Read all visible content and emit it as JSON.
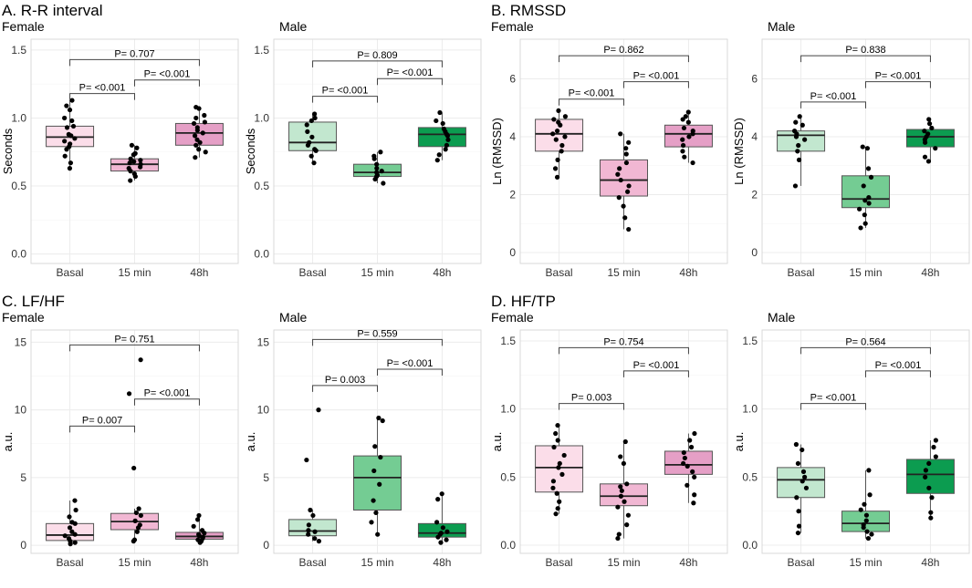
{
  "chart_data": [
    {
      "type": "box",
      "title": "A. R-R interval",
      "subtitle": "Female",
      "ylabel": "Seconds",
      "ylim": [
        -0.07,
        1.58
      ],
      "yticks": [
        "0.0",
        "0.5",
        "1.0",
        "1.5"
      ],
      "yvals": [
        0,
        0.5,
        1,
        1.5
      ],
      "colors": [
        "#fbdde9",
        "#f1b7d3",
        "#e59fc6"
      ],
      "groups": [
        {
          "label": "Basal",
          "q1": 0.79,
          "median": 0.86,
          "q3": 0.94,
          "whisker_low": 0.63,
          "whisker_high": 1.13,
          "points": [
            0.63,
            0.67,
            0.72,
            0.77,
            0.79,
            0.81,
            0.83,
            0.85,
            0.87,
            0.88,
            0.93,
            0.94,
            0.98,
            1.0,
            1.06,
            1.09,
            1.13
          ]
        },
        {
          "label": "15 min",
          "q1": 0.61,
          "median": 0.66,
          "q3": 0.7,
          "whisker_low": 0.54,
          "whisker_high": 0.8,
          "points": [
            0.54,
            0.57,
            0.59,
            0.61,
            0.63,
            0.64,
            0.66,
            0.67,
            0.68,
            0.69,
            0.7,
            0.73,
            0.74,
            0.78,
            0.8
          ]
        },
        {
          "label": "48h",
          "q1": 0.8,
          "median": 0.89,
          "q3": 0.96,
          "whisker_low": 0.71,
          "whisker_high": 1.08,
          "points": [
            0.71,
            0.75,
            0.77,
            0.8,
            0.82,
            0.84,
            0.87,
            0.89,
            0.91,
            0.93,
            0.96,
            0.97,
            1.0,
            1.02,
            1.07,
            1.08
          ]
        }
      ],
      "comparisons": [
        {
          "from": 0,
          "to": 2,
          "y": 1.43,
          "label": "P= 0.707"
        },
        {
          "from": 1,
          "to": 2,
          "y": 1.28,
          "label": "P= <0.001"
        },
        {
          "from": 0,
          "to": 1,
          "y": 1.18,
          "label": "P= <0.001"
        }
      ]
    },
    {
      "type": "box",
      "title": "",
      "subtitle": "Male",
      "ylabel": "Seconds",
      "ylim": [
        -0.07,
        1.58
      ],
      "yticks": [
        "0.0",
        "0.5",
        "1.0",
        "1.5"
      ],
      "yvals": [
        0,
        0.5,
        1,
        1.5
      ],
      "colors": [
        "#c2e7cf",
        "#74cc93",
        "#0c9c50"
      ],
      "groups": [
        {
          "label": "Basal",
          "q1": 0.76,
          "median": 0.82,
          "q3": 0.97,
          "whisker_low": 0.67,
          "whisker_high": 1.03,
          "points": [
            0.67,
            0.72,
            0.76,
            0.77,
            0.8,
            0.82,
            0.86,
            0.9,
            0.95,
            0.98,
            1.0,
            1.03
          ]
        },
        {
          "label": "15 min",
          "q1": 0.57,
          "median": 0.6,
          "q3": 0.66,
          "whisker_low": 0.52,
          "whisker_high": 0.75,
          "points": [
            0.52,
            0.55,
            0.57,
            0.58,
            0.6,
            0.61,
            0.63,
            0.66,
            0.7,
            0.72,
            0.75
          ]
        },
        {
          "label": "48h",
          "q1": 0.79,
          "median": 0.88,
          "q3": 0.93,
          "whisker_low": 0.69,
          "whisker_high": 1.04,
          "points": [
            0.69,
            0.73,
            0.77,
            0.8,
            0.84,
            0.87,
            0.88,
            0.9,
            0.92,
            0.96,
            0.98,
            1.04
          ]
        }
      ],
      "comparisons": [
        {
          "from": 0,
          "to": 2,
          "y": 1.42,
          "label": "P= 0.809"
        },
        {
          "from": 1,
          "to": 2,
          "y": 1.29,
          "label": "P= <0.001"
        },
        {
          "from": 0,
          "to": 1,
          "y": 1.16,
          "label": "P= <0.001"
        }
      ]
    },
    {
      "type": "box",
      "title": "B. RMSSD",
      "subtitle": "Female",
      "ylabel": "Ln (RMSSD)",
      "ylim": [
        -0.38,
        7.37
      ],
      "yticks": [
        "0",
        "2",
        "4",
        "6"
      ],
      "yvals": [
        0,
        2,
        4,
        6
      ],
      "colors": [
        "#fbdde9",
        "#f1b7d3",
        "#e59fc6"
      ],
      "groups": [
        {
          "label": "Basal",
          "q1": 3.5,
          "median": 4.1,
          "q3": 4.6,
          "whisker_low": 2.6,
          "whisker_high": 4.9,
          "points": [
            2.6,
            2.9,
            3.2,
            3.5,
            3.7,
            3.9,
            4.0,
            4.1,
            4.2,
            4.4,
            4.5,
            4.6,
            4.7,
            4.9
          ]
        },
        {
          "label": "15 min",
          "q1": 1.95,
          "median": 2.5,
          "q3": 3.2,
          "whisker_low": 0.8,
          "whisker_high": 4.1,
          "points": [
            0.8,
            1.2,
            1.6,
            1.9,
            2.1,
            2.3,
            2.5,
            2.7,
            2.9,
            3.1,
            3.4,
            3.6,
            3.8,
            4.1
          ]
        },
        {
          "label": "48h",
          "q1": 3.65,
          "median": 4.1,
          "q3": 4.4,
          "whisker_low": 3.1,
          "whisker_high": 4.85,
          "points": [
            3.1,
            3.3,
            3.5,
            3.7,
            3.9,
            4.0,
            4.1,
            4.2,
            4.3,
            4.5,
            4.6,
            4.7,
            4.85
          ]
        }
      ],
      "comparisons": [
        {
          "from": 0,
          "to": 2,
          "y": 6.8,
          "label": "P= 0.862"
        },
        {
          "from": 1,
          "to": 2,
          "y": 5.9,
          "label": "P= <0.001"
        },
        {
          "from": 0,
          "to": 1,
          "y": 5.3,
          "label": "P= <0.001"
        }
      ]
    },
    {
      "type": "box",
      "title": "",
      "subtitle": "Male",
      "ylabel": "Ln (RMSSD)",
      "ylim": [
        -0.38,
        7.37
      ],
      "yticks": [
        "0",
        "2",
        "4",
        "6"
      ],
      "yvals": [
        0,
        2,
        4,
        6
      ],
      "colors": [
        "#c2e7cf",
        "#74cc93",
        "#0c9c50"
      ],
      "groups": [
        {
          "label": "Basal",
          "q1": 3.5,
          "median": 4.05,
          "q3": 4.2,
          "whisker_low": 2.3,
          "whisker_high": 4.7,
          "points": [
            2.3,
            3.2,
            3.5,
            3.7,
            3.9,
            4.0,
            4.1,
            4.2,
            4.4,
            4.5,
            4.7
          ]
        },
        {
          "label": "15 min",
          "q1": 1.55,
          "median": 1.85,
          "q3": 2.65,
          "whisker_low": 0.85,
          "whisker_high": 3.65,
          "points": [
            0.85,
            1.0,
            1.3,
            1.5,
            1.7,
            1.8,
            1.9,
            2.3,
            2.6,
            2.9,
            3.6,
            3.65
          ]
        },
        {
          "label": "48h",
          "q1": 3.65,
          "median": 4.0,
          "q3": 4.25,
          "whisker_low": 3.15,
          "whisker_high": 4.6,
          "points": [
            3.15,
            3.3,
            3.6,
            3.8,
            3.9,
            4.0,
            4.1,
            4.2,
            4.3,
            4.45,
            4.6
          ]
        }
      ],
      "comparisons": [
        {
          "from": 0,
          "to": 2,
          "y": 6.8,
          "label": "P= 0.838"
        },
        {
          "from": 1,
          "to": 2,
          "y": 5.9,
          "label": "P= <0.001"
        },
        {
          "from": 0,
          "to": 1,
          "y": 5.2,
          "label": "P= <0.001"
        }
      ]
    },
    {
      "type": "box",
      "title": "C. LF/HF",
      "subtitle": "Female",
      "ylabel": "a.u.",
      "ylim": [
        -0.6,
        15.9
      ],
      "yticks": [
        "0",
        "5",
        "10",
        "15"
      ],
      "yvals": [
        0,
        5,
        10,
        15
      ],
      "colors": [
        "#fbdde9",
        "#f1b7d3",
        "#e59fc6"
      ],
      "groups": [
        {
          "label": "Basal",
          "q1": 0.35,
          "median": 0.75,
          "q3": 1.6,
          "whisker_low": 0.1,
          "whisker_high": 3.3,
          "points": [
            0.1,
            0.2,
            0.3,
            0.5,
            0.7,
            0.8,
            1.0,
            1.3,
            1.6,
            1.7,
            2.1,
            2.6,
            3.3
          ]
        },
        {
          "label": "15 min",
          "q1": 1.15,
          "median": 1.75,
          "q3": 2.35,
          "whisker_low": 0.3,
          "whisker_high": 2.7,
          "points": [
            0.3,
            0.4,
            1.0,
            1.3,
            1.5,
            1.8,
            2.2,
            2.4,
            2.7,
            5.7,
            11.2,
            13.7
          ]
        },
        {
          "label": "48h",
          "q1": 0.45,
          "median": 0.65,
          "q3": 0.95,
          "whisker_low": 0.2,
          "whisker_high": 2.2,
          "points": [
            0.2,
            0.3,
            0.4,
            0.5,
            0.6,
            0.7,
            0.8,
            0.9,
            1.1,
            1.4,
            1.9,
            2.2
          ]
        }
      ],
      "comparisons": [
        {
          "from": 0,
          "to": 2,
          "y": 14.8,
          "label": "P= 0.751"
        },
        {
          "from": 1,
          "to": 2,
          "y": 10.8,
          "label": "P= <0.001"
        },
        {
          "from": 0,
          "to": 1,
          "y": 8.8,
          "label": "P= 0.007"
        }
      ]
    },
    {
      "type": "box",
      "title": "",
      "subtitle": "Male",
      "ylabel": "a.u.",
      "ylim": [
        -0.6,
        15.9
      ],
      "yticks": [
        "0",
        "5",
        "10",
        "15"
      ],
      "yvals": [
        0,
        5,
        10,
        15
      ],
      "colors": [
        "#c2e7cf",
        "#74cc93",
        "#0c9c50"
      ],
      "groups": [
        {
          "label": "Basal",
          "q1": 0.7,
          "median": 1.05,
          "q3": 1.9,
          "whisker_low": 0.3,
          "whisker_high": 2.6,
          "points": [
            0.3,
            0.5,
            0.8,
            1.0,
            1.1,
            1.5,
            2.2,
            2.6,
            6.3,
            10.0
          ]
        },
        {
          "label": "15 min",
          "q1": 2.6,
          "median": 5.0,
          "q3": 6.6,
          "whisker_low": 0.8,
          "whisker_high": 9.4,
          "points": [
            0.8,
            1.7,
            2.4,
            3.3,
            4.5,
            5.5,
            6.5,
            7.3,
            9.2,
            9.4
          ]
        },
        {
          "label": "48h",
          "q1": 0.6,
          "median": 0.9,
          "q3": 1.6,
          "whisker_low": 0.2,
          "whisker_high": 3.8,
          "points": [
            0.2,
            0.4,
            0.6,
            0.8,
            0.9,
            1.0,
            1.3,
            1.7,
            3.4,
            3.8
          ]
        }
      ],
      "comparisons": [
        {
          "from": 0,
          "to": 2,
          "y": 15.2,
          "label": "P= 0.559"
        },
        {
          "from": 1,
          "to": 2,
          "y": 13.0,
          "label": "P= <0.001"
        },
        {
          "from": 0,
          "to": 1,
          "y": 11.8,
          "label": "P= 0.003"
        }
      ]
    },
    {
      "type": "box",
      "title": "D. HF/TP",
      "subtitle": "Female",
      "ylabel": "a.u.",
      "ylim": [
        -0.06,
        1.58
      ],
      "yticks": [
        "0.0",
        "0.5",
        "1.0",
        "1.5"
      ],
      "yvals": [
        0,
        0.5,
        1,
        1.5
      ],
      "colors": [
        "#fbdde9",
        "#f1b7d3",
        "#e59fc6"
      ],
      "groups": [
        {
          "label": "Basal",
          "q1": 0.39,
          "median": 0.57,
          "q3": 0.73,
          "whisker_low": 0.23,
          "whisker_high": 0.88,
          "points": [
            0.23,
            0.27,
            0.32,
            0.38,
            0.42,
            0.47,
            0.52,
            0.57,
            0.6,
            0.66,
            0.72,
            0.77,
            0.82,
            0.88
          ]
        },
        {
          "label": "15 min",
          "q1": 0.29,
          "median": 0.36,
          "q3": 0.45,
          "whisker_low": 0.05,
          "whisker_high": 0.76,
          "points": [
            0.05,
            0.08,
            0.15,
            0.22,
            0.28,
            0.32,
            0.36,
            0.4,
            0.43,
            0.45,
            0.6,
            0.65,
            0.76
          ]
        },
        {
          "label": "48h",
          "q1": 0.52,
          "median": 0.59,
          "q3": 0.69,
          "whisker_low": 0.31,
          "whisker_high": 0.82,
          "points": [
            0.31,
            0.37,
            0.44,
            0.5,
            0.54,
            0.58,
            0.6,
            0.64,
            0.68,
            0.72,
            0.77,
            0.82
          ]
        }
      ],
      "comparisons": [
        {
          "from": 0,
          "to": 2,
          "y": 1.45,
          "label": "P= 0.754"
        },
        {
          "from": 1,
          "to": 2,
          "y": 1.28,
          "label": "P= <0.001"
        },
        {
          "from": 0,
          "to": 1,
          "y": 1.04,
          "label": "P= 0.003"
        }
      ]
    },
    {
      "type": "box",
      "title": "",
      "subtitle": "Male",
      "ylabel": "a.u.",
      "ylim": [
        -0.06,
        1.58
      ],
      "yticks": [
        "0.0",
        "0.5",
        "1.0",
        "1.5"
      ],
      "yvals": [
        0,
        0.5,
        1,
        1.5
      ],
      "colors": [
        "#c2e7cf",
        "#74cc93",
        "#0c9c50"
      ],
      "groups": [
        {
          "label": "Basal",
          "q1": 0.35,
          "median": 0.48,
          "q3": 0.57,
          "whisker_low": 0.09,
          "whisker_high": 0.74,
          "points": [
            0.09,
            0.14,
            0.25,
            0.35,
            0.42,
            0.47,
            0.5,
            0.54,
            0.6,
            0.7,
            0.74
          ]
        },
        {
          "label": "15 min",
          "q1": 0.1,
          "median": 0.16,
          "q3": 0.25,
          "whisker_low": 0.05,
          "whisker_high": 0.55,
          "points": [
            0.05,
            0.08,
            0.1,
            0.13,
            0.15,
            0.18,
            0.22,
            0.26,
            0.3,
            0.37,
            0.55
          ]
        },
        {
          "label": "48h",
          "q1": 0.38,
          "median": 0.52,
          "q3": 0.63,
          "whisker_low": 0.2,
          "whisker_high": 0.77,
          "points": [
            0.2,
            0.24,
            0.35,
            0.42,
            0.5,
            0.55,
            0.6,
            0.65,
            0.72,
            0.77
          ]
        }
      ],
      "comparisons": [
        {
          "from": 0,
          "to": 2,
          "y": 1.45,
          "label": "P= 0.564"
        },
        {
          "from": 1,
          "to": 2,
          "y": 1.28,
          "label": "P= <0.001"
        },
        {
          "from": 0,
          "to": 1,
          "y": 1.04,
          "label": "P= <0.001"
        }
      ]
    }
  ]
}
